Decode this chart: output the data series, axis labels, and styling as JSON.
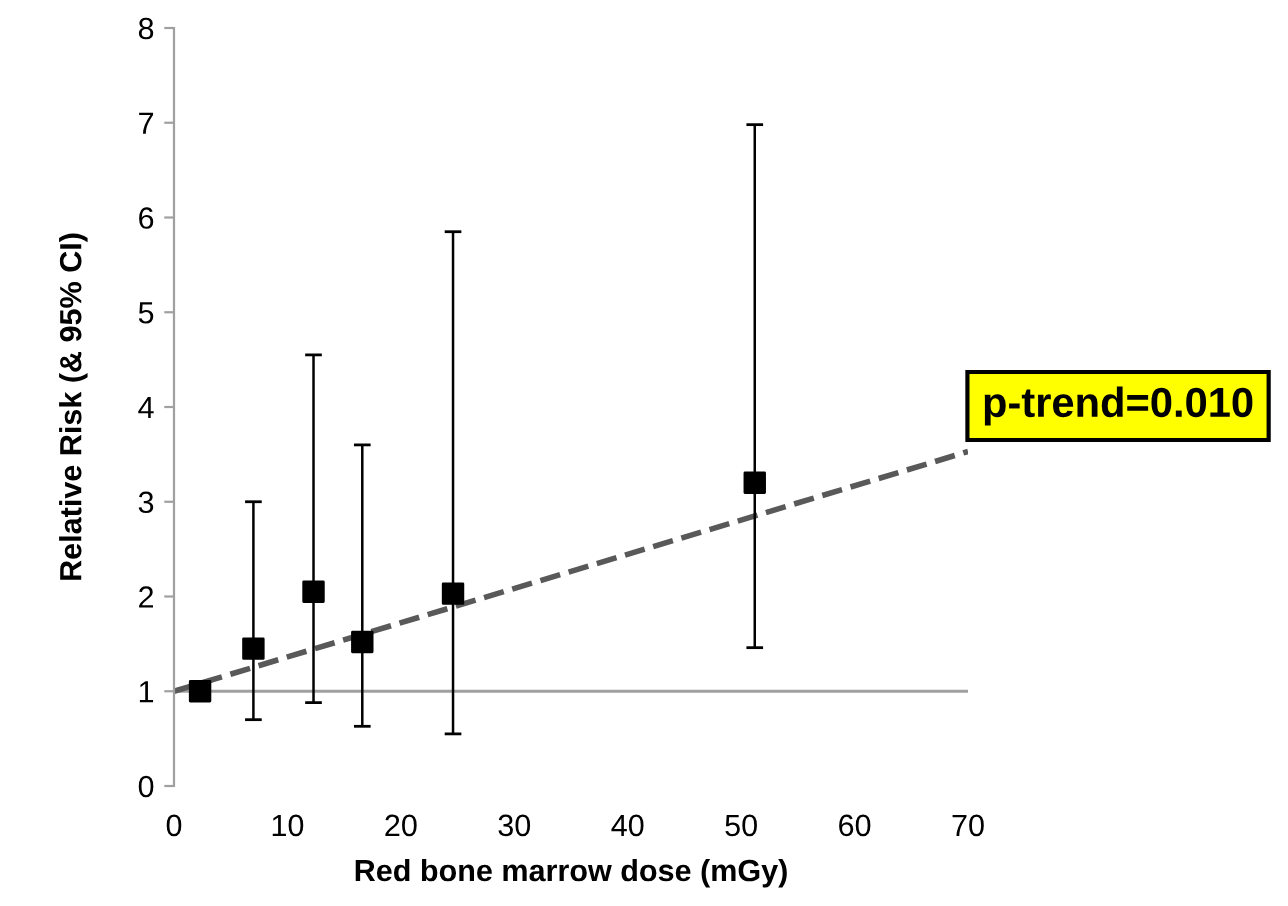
{
  "chart_data": {
    "type": "scatter",
    "xlabel": "Red bone marrow dose (mGy)",
    "ylabel": "Relative Risk (& 95% CI)",
    "xlim": [
      0,
      70
    ],
    "xticks": [
      0,
      10,
      20,
      30,
      40,
      50,
      60,
      70
    ],
    "ylim": [
      0,
      8
    ],
    "yticks": [
      0,
      1,
      2,
      3,
      4,
      5,
      6,
      7,
      8
    ],
    "grid": false,
    "series": [
      {
        "marker": "square",
        "color": "#000000",
        "x": [
          2.3,
          7.0,
          12.3,
          16.6,
          24.6,
          51.2
        ],
        "values": [
          1.0,
          1.45,
          2.05,
          1.52,
          2.03,
          3.2
        ],
        "errors": [
          null,
          [
            0.7,
            3.0
          ],
          [
            0.88,
            4.55
          ],
          [
            0.63,
            3.6
          ],
          [
            0.55,
            5.85
          ],
          [
            1.46,
            6.98
          ]
        ]
      },
      {
        "type": "line",
        "color": "#595959",
        "line_style": "dashed",
        "x": [
          0,
          70
        ],
        "values": [
          1.0,
          3.53
        ]
      }
    ],
    "ref_lines": [
      {
        "axis": "y",
        "value": 1,
        "color": "#a0a0a0"
      }
    ],
    "annotations": [
      "p-trend=0.010"
    ]
  }
}
